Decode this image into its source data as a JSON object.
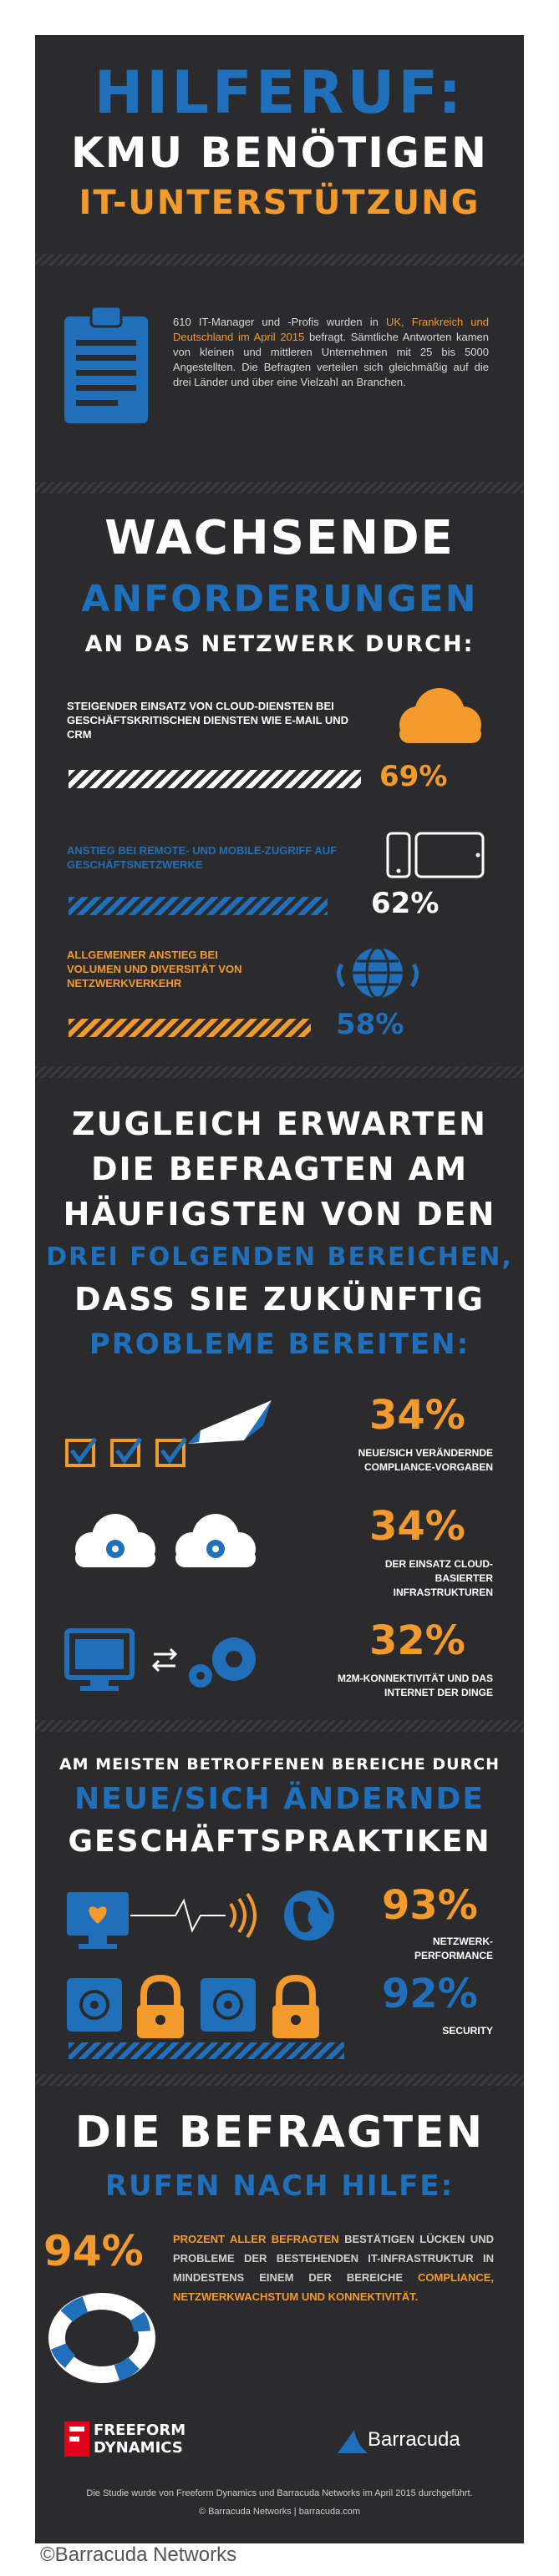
{
  "header": {
    "line1": "HILFERUF:",
    "line2": "KMU BENÖTIGEN",
    "line3": "IT-UNTERSTÜTZUNG"
  },
  "intro": {
    "part1": "610 IT-Manager und -Profis wurden in ",
    "highlight": "UK, Frankreich und Deutschland im April 2015",
    "part2": " befragt. Sämtliche Antworten kamen von kleinen und mittleren Unternehmen mit 25 bis 5000 Angestellten. Die Befragten verteilen sich gleichmäßig auf die drei Länder und über eine Vielzahl an Branchen."
  },
  "demands": {
    "title1": "WACHSENDE",
    "title2": "ANFORDERUNGEN",
    "title3": "AN DAS NETZWERK DURCH:",
    "items": [
      {
        "label": "STEIGENDER EINSATZ VON CLOUD-DIENSTEN BEI GESCHÄFTSKRITISCHEN DIENSTEN WIE E-MAIL UND CRM",
        "value": "69%",
        "color": "#ffffff"
      },
      {
        "label": "ANSTIEG BEI REMOTE- UND MOBILE-ZUGRIFF AUF GESCHÄFTSNETZWERKE",
        "value": "62%",
        "color": "#1f6fba"
      },
      {
        "label": "ALLGEMEINER ANSTIEG BEI VOLUMEN UND DIVERSITÄT VON NETZWERKVERKEHR",
        "value": "58%",
        "color": "#f39a2c"
      }
    ]
  },
  "expect": {
    "line1": "ZUGLEICH ERWARTEN",
    "line2": "DIE BEFRAGTEN AM",
    "line3": "HÄUFIGSTEN VON DEN",
    "line4": "DREI FOLGENDEN BEREICHEN,",
    "line5": "DASS SIE ZUKÜNFTIG",
    "line6": "PROBLEME BEREITEN:",
    "items": [
      {
        "value": "34%",
        "label": "NEUE/SICH VERÄNDERNDE COMPLIANCE-VORGABEN"
      },
      {
        "value": "34%",
        "label": "DER EINSATZ CLOUD-BASIERTER INFRASTRUKTUREN"
      },
      {
        "value": "32%",
        "label": "M2M-KONNEKTIVITÄT UND DAS INTERNET DER DINGE"
      }
    ]
  },
  "affected": {
    "line1": "AM MEISTEN BETROFFENEN BEREICHE DURCH",
    "line2": "NEUE/SICH ÄNDERNDE",
    "line3": "GESCHÄFTSPRAKTIKEN",
    "items": [
      {
        "value": "93%",
        "label": "NETZWERK-PERFORMANCE"
      },
      {
        "value": "92%",
        "label": "SECURITY"
      }
    ]
  },
  "help": {
    "line1": "DIE BEFRAGTEN",
    "line2": "RUFEN NACH HILFE:",
    "value": "94%",
    "text_a": "PROZENT ALLER BEFRAGTEN",
    "text_b": " BESTÄTIGEN LÜCKEN UND PROBLEME DER BESTEHENDEN IT-INFRASTRUKTUR IN MINDESTENS EINEM DER BEREICHE ",
    "text_c": "COMPLIANCE, NETZWERKWACHSTUM UND KONNEKTIVITÄT."
  },
  "footer": {
    "logo_left_1": "FREEFORM",
    "logo_left_2": "DYNAMICS",
    "logo_right": "Barracuda",
    "note": "Die Studie wurde von Freeform Dynamics und Barracuda Networks im April 2015 durchgeführt.",
    "copyright": "© Barracuda Networks | barracuda.com"
  },
  "caption": "©Barracuda Networks",
  "colors": {
    "blue": "#1f6fba",
    "orange": "#f39a2c",
    "background": "#2b2b2d"
  }
}
